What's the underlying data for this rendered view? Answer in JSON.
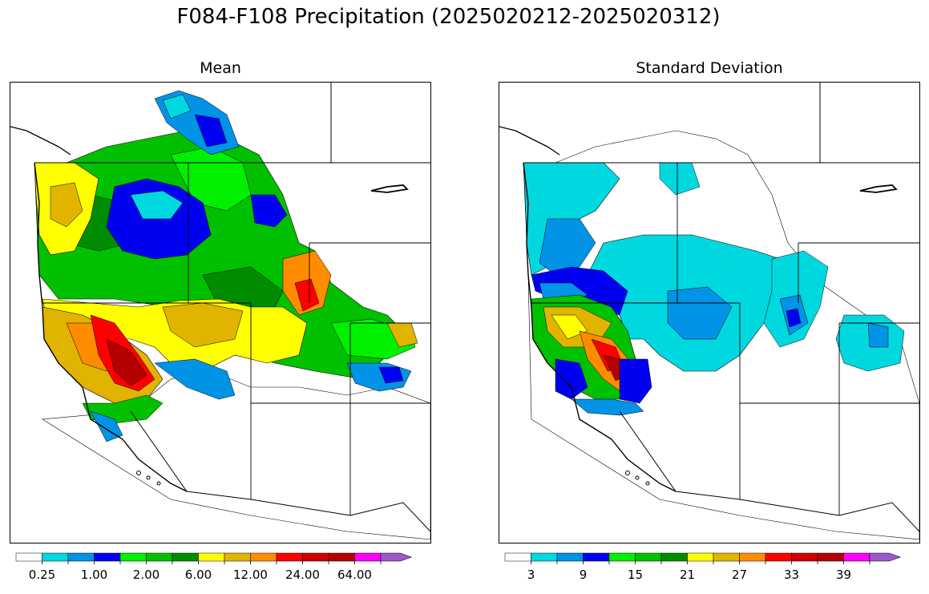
{
  "figure": {
    "title": "F084-F108 Precipitation (2025020212-2025020312)"
  },
  "panels": [
    {
      "title": "Mean",
      "colorbar": {
        "colors": [
          "#ffffff",
          "#00d8e0",
          "#0093e6",
          "#0000f0",
          "#00f000",
          "#00c000",
          "#008c00",
          "#ffff00",
          "#e0b400",
          "#ff8c00",
          "#ff0000",
          "#d00000",
          "#b40000",
          "#ff00ff",
          "#9c59c6"
        ],
        "tick_labels": [
          "0.25",
          "1.00",
          "2.00",
          "6.00",
          "12.00",
          "24.00",
          "64.00"
        ],
        "extend": "max"
      }
    },
    {
      "title": "Standard Deviation",
      "colorbar": {
        "colors": [
          "#ffffff",
          "#00d8e0",
          "#0093e6",
          "#0000f0",
          "#00f000",
          "#00c000",
          "#008c00",
          "#ffff00",
          "#e0b400",
          "#ff8c00",
          "#ff0000",
          "#d00000",
          "#b40000",
          "#ff00ff",
          "#9c59c6"
        ],
        "tick_labels": [
          "3",
          "9",
          "15",
          "21",
          "27",
          "33",
          "39"
        ],
        "extend": "max"
      }
    }
  ]
}
